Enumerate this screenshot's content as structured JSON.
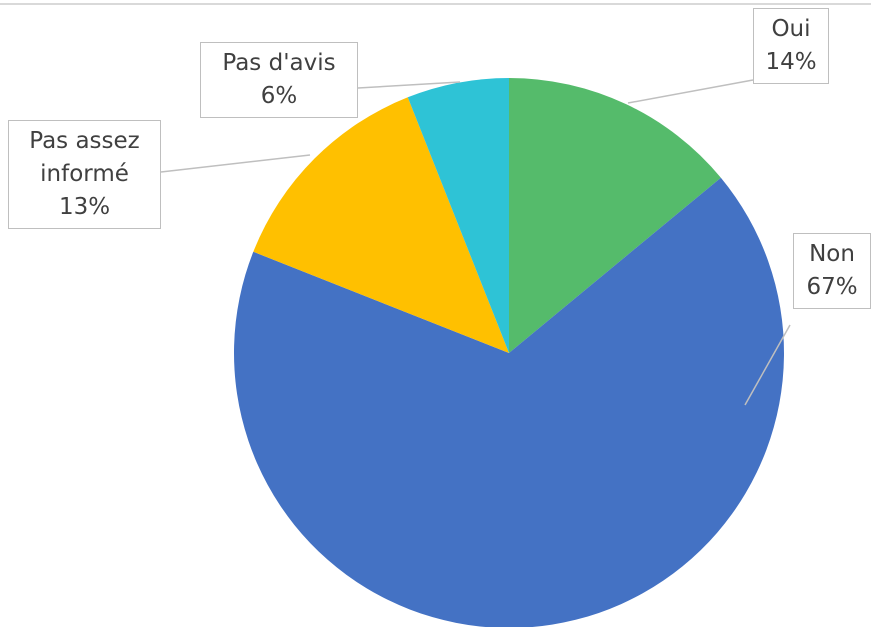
{
  "chart_data": {
    "type": "pie",
    "categories": [
      "Oui",
      "Non",
      "Pas assez informé",
      "Pas d'avis"
    ],
    "values": [
      14,
      67,
      13,
      6
    ],
    "value_labels": [
      "14%",
      "67%",
      "13%",
      "6%"
    ],
    "colors": [
      "#55bb6b",
      "#4472c4",
      "#ffc000",
      "#2ec3d6"
    ]
  }
}
